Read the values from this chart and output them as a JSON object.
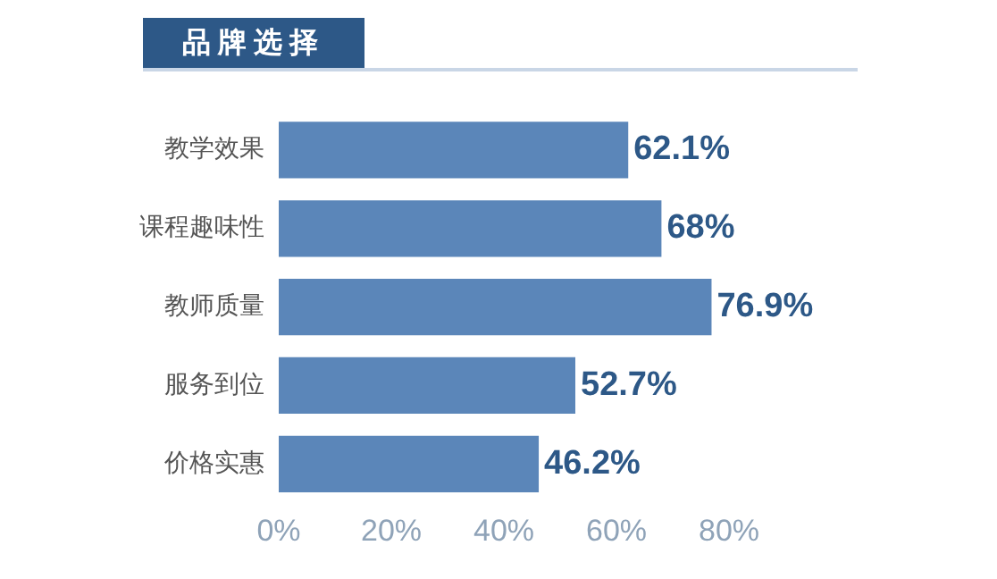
{
  "chart_data": {
    "type": "bar",
    "orientation": "horizontal",
    "title": "品牌选择",
    "categories": [
      "教学效果",
      "课程趣味性",
      "教师质量",
      "服务到位",
      "价格实惠"
    ],
    "values": [
      62.1,
      68,
      76.9,
      52.7,
      46.2
    ],
    "value_labels": [
      "62.1%",
      "68%",
      "76.9%",
      "52.7%",
      "46.2%"
    ],
    "color": "#5b86b9",
    "xlim": [
      0,
      80
    ],
    "xticks": [
      {
        "value": 0,
        "label": "0%"
      },
      {
        "value": 20,
        "label": "20%"
      },
      {
        "value": 40,
        "label": "40%"
      },
      {
        "value": 60,
        "label": "60%"
      },
      {
        "value": 80,
        "label": "80%"
      }
    ],
    "legend": false
  }
}
